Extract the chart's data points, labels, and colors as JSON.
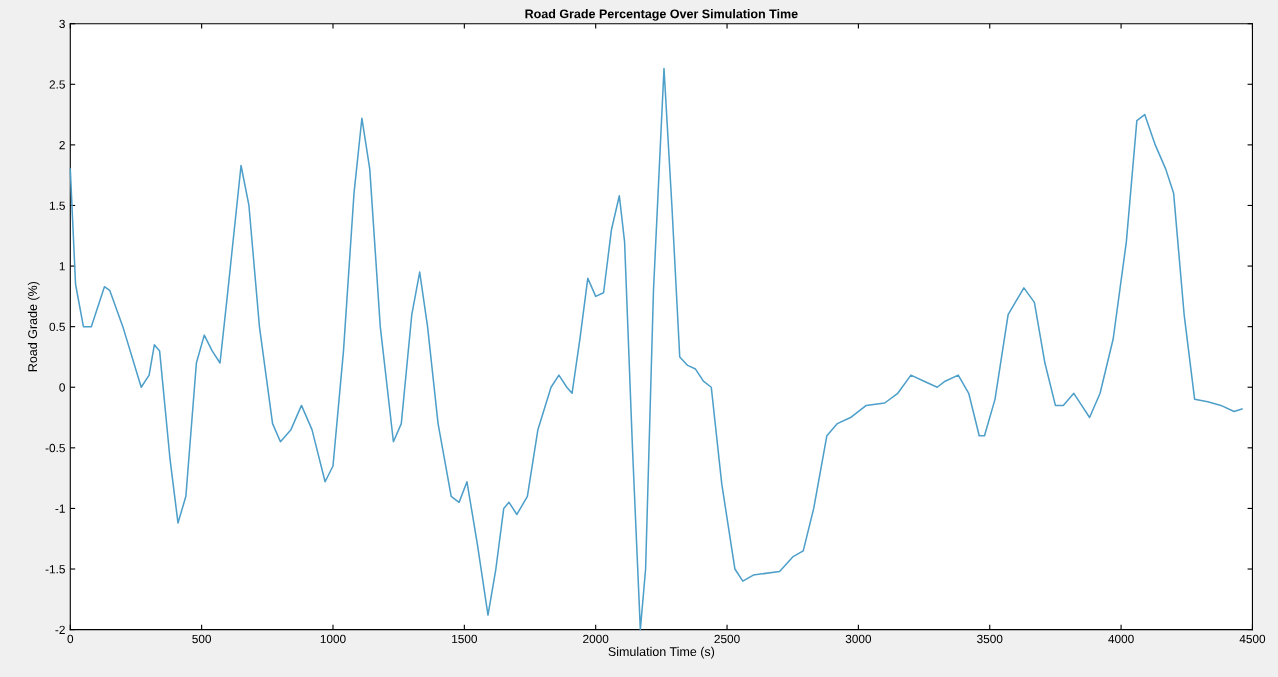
{
  "chart_data": {
    "type": "line",
    "title": "Road Grade Percentage Over Simulation Time",
    "xlabel": "Simulation Time (s)",
    "ylabel": "Road Grade (%)",
    "xlim": [
      0,
      4500
    ],
    "ylim": [
      -2,
      3
    ],
    "xticks": [
      0,
      500,
      1000,
      1500,
      2000,
      2500,
      3000,
      3500,
      4000,
      4500
    ],
    "yticks": [
      -2,
      -1.5,
      -1,
      -0.5,
      0,
      0.5,
      1,
      1.5,
      2,
      2.5,
      3
    ],
    "grid": false,
    "series": [
      {
        "color": "#4d9fc9",
        "x": [
          0,
          20,
          50,
          80,
          130,
          150,
          200,
          270,
          300,
          320,
          340,
          380,
          410,
          440,
          480,
          510,
          540,
          570,
          600,
          650,
          680,
          720,
          770,
          800,
          840,
          880,
          920,
          970,
          1000,
          1040,
          1080,
          1110,
          1140,
          1180,
          1230,
          1260,
          1300,
          1330,
          1360,
          1400,
          1450,
          1480,
          1510,
          1550,
          1590,
          1620,
          1650,
          1670,
          1700,
          1740,
          1780,
          1830,
          1860,
          1890,
          1910,
          1940,
          1970,
          2000,
          2030,
          2060,
          2090,
          2110,
          2140,
          2170,
          2190,
          2220,
          2260,
          2290,
          2320,
          2350,
          2380,
          2410,
          2440,
          2480,
          2530,
          2560,
          2600,
          2700,
          2750,
          2790,
          2830,
          2880,
          2920,
          2970,
          3030,
          3100,
          3150,
          3200,
          3250,
          3300,
          3330,
          3380,
          3420,
          3460,
          3480,
          3520,
          3570,
          3630,
          3670,
          3710,
          3750,
          3780,
          3820,
          3850,
          3880,
          3920,
          3970,
          4020,
          4060,
          4090,
          4130,
          4170,
          4200,
          4240,
          4280,
          4330,
          4380,
          4430,
          4460
        ],
        "values": [
          1.8,
          0.85,
          0.5,
          0.5,
          0.83,
          0.8,
          0.5,
          0.0,
          0.1,
          0.35,
          0.3,
          -0.6,
          -1.12,
          -0.9,
          0.2,
          0.43,
          0.3,
          0.2,
          0.8,
          1.83,
          1.5,
          0.5,
          -0.3,
          -0.45,
          -0.35,
          -0.15,
          -0.35,
          -0.78,
          -0.65,
          0.3,
          1.6,
          2.22,
          1.8,
          0.5,
          -0.45,
          -0.3,
          0.6,
          0.95,
          0.5,
          -0.3,
          -0.9,
          -0.95,
          -0.78,
          -1.3,
          -1.88,
          -1.5,
          -1.0,
          -0.95,
          -1.05,
          -0.9,
          -0.35,
          0.0,
          0.1,
          0.0,
          -0.05,
          0.4,
          0.9,
          0.75,
          0.78,
          1.3,
          1.58,
          1.2,
          -0.5,
          -2.0,
          -1.5,
          0.8,
          2.63,
          1.5,
          0.25,
          0.18,
          0.15,
          0.05,
          0.0,
          -0.8,
          -1.5,
          -1.6,
          -1.55,
          -1.52,
          -1.4,
          -1.35,
          -1.0,
          -0.4,
          -0.3,
          -0.25,
          -0.15,
          -0.13,
          -0.05,
          0.1,
          0.05,
          0.0,
          0.05,
          0.1,
          -0.05,
          -0.4,
          -0.4,
          -0.1,
          0.6,
          0.82,
          0.7,
          0.2,
          -0.15,
          -0.15,
          -0.05,
          -0.15,
          -0.25,
          -0.05,
          0.4,
          1.2,
          2.2,
          2.25,
          2.0,
          1.8,
          1.6,
          0.6,
          -0.1,
          -0.12,
          -0.15,
          -0.2,
          -0.18
        ]
      }
    ]
  }
}
